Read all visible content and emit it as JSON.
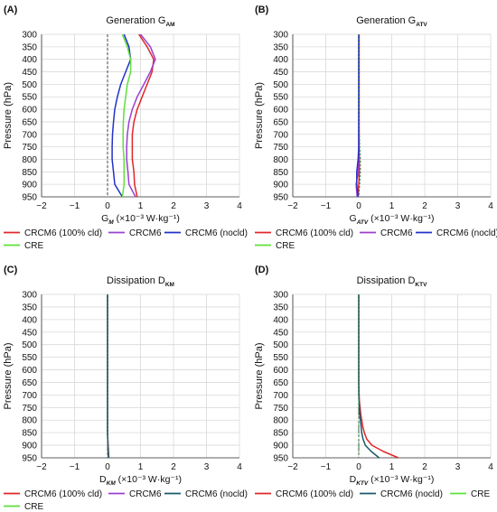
{
  "figure": {
    "ylabel": "Pressure (hPa)",
    "xlabel_unit": "(×10⁻³ W·kg⁻¹)"
  },
  "colors": {
    "CRCM6 (100% cld)": "#e0262a",
    "CRCM6": "#9b3fd0",
    "CRCM6 (nocld)": "#2332c8",
    "CRE": "#5ee03a",
    "nocld_teal": "#1a5a6a",
    "cre_dash": "#2a8a4a"
  },
  "chart_data": [
    {
      "panel_label": "(A)",
      "type": "line",
      "title_main": "Generation G",
      "title_sub": "AM",
      "xlabel_main": "G",
      "xlabel_sub": "M",
      "xlim": [
        -2,
        4
      ],
      "ylim": [
        300,
        950
      ],
      "xticks": [
        -2,
        -1,
        0,
        1,
        2,
        3,
        4
      ],
      "yticks": [
        300,
        350,
        400,
        450,
        500,
        550,
        600,
        650,
        700,
        750,
        800,
        850,
        900,
        950
      ],
      "y": [
        300,
        350,
        400,
        450,
        500,
        550,
        600,
        650,
        700,
        750,
        800,
        850,
        900,
        950
      ],
      "series": [
        {
          "name": "CRCM6 (100% cld)",
          "values": [
            0.95,
            1.2,
            1.4,
            1.35,
            1.2,
            1.05,
            0.9,
            0.8,
            0.75,
            0.75,
            0.75,
            0.8,
            0.82,
            0.9
          ]
        },
        {
          "name": "CRCM6",
          "values": [
            1.0,
            1.3,
            1.45,
            1.3,
            1.1,
            0.9,
            0.75,
            0.65,
            0.6,
            0.58,
            0.58,
            0.62,
            0.65,
            0.85
          ]
        },
        {
          "name": "CRCM6 (nocld)",
          "values": [
            0.5,
            0.65,
            0.7,
            0.55,
            0.4,
            0.3,
            0.22,
            0.18,
            0.15,
            0.14,
            0.14,
            0.18,
            0.22,
            0.45
          ]
        },
        {
          "name": "CRE",
          "values": [
            0.45,
            0.6,
            0.7,
            0.7,
            0.6,
            0.55,
            0.5,
            0.48,
            0.47,
            0.47,
            0.5,
            0.5,
            0.5,
            0.45
          ]
        }
      ],
      "legend": [
        "CRCM6 (100% cld)",
        "CRCM6",
        "CRCM6 (nocld)",
        "CRE"
      ]
    },
    {
      "panel_label": "(B)",
      "type": "line",
      "title_main": "Generation G",
      "title_sub": "ATV",
      "xlabel_main": "G",
      "xlabel_sub": "ATV",
      "xlim": [
        -2,
        4
      ],
      "ylim": [
        300,
        950
      ],
      "xticks": [
        -2,
        -1,
        0,
        1,
        2,
        3,
        4
      ],
      "yticks": [
        300,
        350,
        400,
        450,
        500,
        550,
        600,
        650,
        700,
        750,
        800,
        850,
        900,
        950
      ],
      "y": [
        300,
        350,
        400,
        450,
        500,
        550,
        600,
        650,
        700,
        750,
        800,
        850,
        900,
        950
      ],
      "series": [
        {
          "name": "CRCM6 (100% cld)",
          "values": [
            0.01,
            0.01,
            0.01,
            0.01,
            0.01,
            0.01,
            0.01,
            0.01,
            0.01,
            0.01,
            0.02,
            0.02,
            0.0,
            -0.02
          ]
        },
        {
          "name": "CRCM6",
          "values": [
            0.0,
            0.0,
            0.0,
            0.0,
            0.0,
            0.0,
            0.0,
            0.0,
            0.0,
            0.0,
            0.0,
            -0.02,
            -0.08,
            -0.05
          ]
        },
        {
          "name": "CRCM6 (nocld)",
          "values": [
            0.0,
            0.0,
            0.0,
            0.0,
            0.0,
            0.0,
            0.0,
            0.0,
            0.0,
            0.0,
            -0.02,
            -0.06,
            -0.06,
            -0.02
          ]
        },
        {
          "name": "CRE",
          "values": [
            0.0,
            0.0,
            0.0,
            0.0,
            0.0,
            0.0,
            0.0,
            0.01,
            0.02,
            0.03,
            0.05,
            0.05,
            0.03,
            0.0
          ]
        }
      ],
      "legend": [
        "CRCM6 (100% cld)",
        "CRCM6",
        "CRCM6 (nocld)",
        "CRE"
      ]
    },
    {
      "panel_label": "(C)",
      "type": "line",
      "title_main": "Dissipation D",
      "title_sub": "KM",
      "xlabel_main": "D",
      "xlabel_sub": "KM",
      "xlim": [
        -2,
        4
      ],
      "ylim": [
        300,
        950
      ],
      "xticks": [
        -2,
        -1,
        0,
        1,
        2,
        3,
        4
      ],
      "yticks": [
        300,
        350,
        400,
        450,
        500,
        550,
        600,
        650,
        700,
        750,
        800,
        850,
        900,
        950
      ],
      "y": [
        300,
        350,
        400,
        450,
        500,
        550,
        600,
        650,
        700,
        750,
        800,
        850,
        900,
        950
      ],
      "series": [
        {
          "name": "CRCM6 (100% cld)",
          "values": [
            0,
            0,
            0,
            0,
            0,
            0,
            0,
            0,
            0,
            0,
            0,
            0,
            0.02,
            0.04
          ]
        },
        {
          "name": "CRCM6",
          "values": [
            0,
            0,
            0,
            0,
            0,
            0,
            0,
            0,
            0,
            0,
            0,
            0,
            0.01,
            0.03
          ]
        },
        {
          "name": "CRCM6 (nocld)",
          "values": [
            0,
            0,
            0,
            0,
            0,
            0,
            0,
            0,
            0,
            0,
            0,
            0,
            0.01,
            0.03
          ]
        },
        {
          "name": "CRE",
          "values": [
            0,
            0,
            0,
            0,
            0,
            0,
            0,
            0,
            0,
            0,
            0,
            0,
            0,
            0
          ]
        }
      ],
      "legend": [
        "CRCM6 (100% cld)",
        "CRCM6",
        "CRCM6 (nocld)",
        "CRE"
      ]
    },
    {
      "panel_label": "(D)",
      "type": "line",
      "title_main": "Dissipation D",
      "title_sub": "KTV",
      "xlabel_main": "D",
      "xlabel_sub": "KTV",
      "xlim": [
        -2,
        4
      ],
      "ylim": [
        300,
        950
      ],
      "xticks": [
        -2,
        -1,
        0,
        1,
        2,
        3,
        4
      ],
      "yticks": [
        300,
        350,
        400,
        450,
        500,
        550,
        600,
        650,
        700,
        750,
        800,
        850,
        900,
        950
      ],
      "y": [
        300,
        350,
        400,
        450,
        500,
        550,
        600,
        650,
        700,
        725,
        750,
        775,
        800,
        825,
        850,
        875,
        900,
        925,
        950
      ],
      "series": [
        {
          "name": "CRCM6 (100% cld)",
          "values": [
            0,
            0,
            0,
            0,
            0,
            0,
            0,
            0,
            0.01,
            0.02,
            0.04,
            0.06,
            0.09,
            0.12,
            0.17,
            0.24,
            0.4,
            0.75,
            1.2
          ]
        },
        {
          "name": "CRCM6 (nocld)",
          "values": [
            0,
            0,
            0,
            0,
            0,
            0,
            0,
            0,
            0,
            0.01,
            0.02,
            0.03,
            0.05,
            0.07,
            0.09,
            0.13,
            0.2,
            0.38,
            0.62
          ]
        },
        {
          "name": "CRE",
          "values": [
            0,
            0,
            0,
            0,
            0,
            0,
            0,
            0,
            0,
            0,
            0,
            0,
            0,
            0,
            0,
            0,
            0,
            0,
            0
          ]
        }
      ],
      "legend": [
        "CRCM6 (100% cld)",
        "CRCM6 (nocld)",
        "CRE"
      ]
    }
  ]
}
